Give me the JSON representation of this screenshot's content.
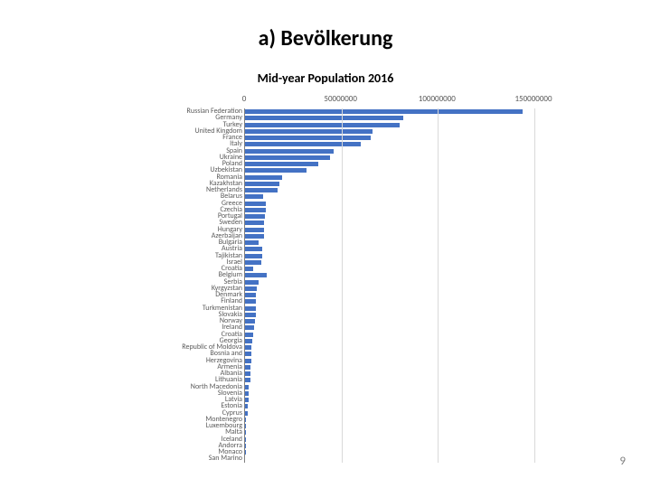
{
  "title": "a) Bevölkerung",
  "subtitle": "Mid-year Population 2016",
  "page_number": "9",
  "chart": {
    "type": "bar-horizontal",
    "xmax": 150000000,
    "xtick_step": 50000000,
    "xtick_labels": [
      "0",
      "50000000",
      "100000000",
      "150000000"
    ],
    "bar_color": "#4472c4",
    "grid_color": "#d9d9d9",
    "axis_color": "#808080",
    "label_fontsize": 8,
    "countries": [
      {
        "label": "Russian Federation",
        "value": 144000000
      },
      {
        "label": "Germany",
        "value": 82000000
      },
      {
        "label": "Turkey",
        "value": 80000000
      },
      {
        "label": "United Kingdom",
        "value": 66000000
      },
      {
        "label": "France",
        "value": 65000000
      },
      {
        "label": "Italy",
        "value": 60000000
      },
      {
        "label": "Spain",
        "value": 46000000
      },
      {
        "label": "Ukraine",
        "value": 44000000
      },
      {
        "label": "Poland",
        "value": 38000000
      },
      {
        "label": "Uzbekistan",
        "value": 32000000
      },
      {
        "label": "Romania",
        "value": 19000000
      },
      {
        "label": "Kazakhstan",
        "value": 18000000
      },
      {
        "label": "Netherlands",
        "value": 17000000
      },
      {
        "label": "Belarus",
        "value": 9500000
      },
      {
        "label": "Greece",
        "value": 10700000
      },
      {
        "label": "Czechia",
        "value": 10600000
      },
      {
        "label": "Portugal",
        "value": 10300000
      },
      {
        "label": "Sweden",
        "value": 10000000
      },
      {
        "label": "Hungary",
        "value": 9800000
      },
      {
        "label": "Azerbaijan",
        "value": 9700000
      },
      {
        "label": "Bulgaria",
        "value": 7100000
      },
      {
        "label": "Austria",
        "value": 8700000
      },
      {
        "label": "Tajikistan",
        "value": 8700000
      },
      {
        "label": "Israel",
        "value": 8500000
      },
      {
        "label": "Croatia",
        "value": 4200000
      },
      {
        "label": "Belgium",
        "value": 11300000
      },
      {
        "label": "Serbia",
        "value": 7000000
      },
      {
        "label": "Kyrgyzstan",
        "value": 6000000
      },
      {
        "label": "Denmark",
        "value": 5700000
      },
      {
        "label": "Finland",
        "value": 5500000
      },
      {
        "label": "Turkmenistan",
        "value": 5600000
      },
      {
        "label": "Slovakia",
        "value": 5400000
      },
      {
        "label": "Norway",
        "value": 5200000
      },
      {
        "label": "Ireland",
        "value": 4700000
      },
      {
        "label": "Croatia",
        "value": 4200000
      },
      {
        "label": "Georgia",
        "value": 3700000
      },
      {
        "label": "Republic of Moldova",
        "value": 3500000
      },
      {
        "label": "Bosnia and",
        "value": 3500000
      },
      {
        "label": "Herzegovina",
        "value": 3400000
      },
      {
        "label": "Armenia",
        "value": 2900000
      },
      {
        "label": "Albania",
        "value": 2900000
      },
      {
        "label": "Lithuania",
        "value": 2800000
      },
      {
        "label": "North Macedonia",
        "value": 2100000
      },
      {
        "label": "Slovenia",
        "value": 2100000
      },
      {
        "label": "Latvia",
        "value": 1900000
      },
      {
        "label": "Estonia",
        "value": 1300000
      },
      {
        "label": "Cyprus",
        "value": 1200000
      },
      {
        "label": "Montenegro",
        "value": 620000
      },
      {
        "label": "Luxembourg",
        "value": 580000
      },
      {
        "label": "Malta",
        "value": 440000
      },
      {
        "label": "Iceland",
        "value": 330000
      },
      {
        "label": "Andorra",
        "value": 77000
      },
      {
        "label": "Monaco",
        "value": 38000
      },
      {
        "label": "San Marino",
        "value": 33000
      }
    ]
  }
}
